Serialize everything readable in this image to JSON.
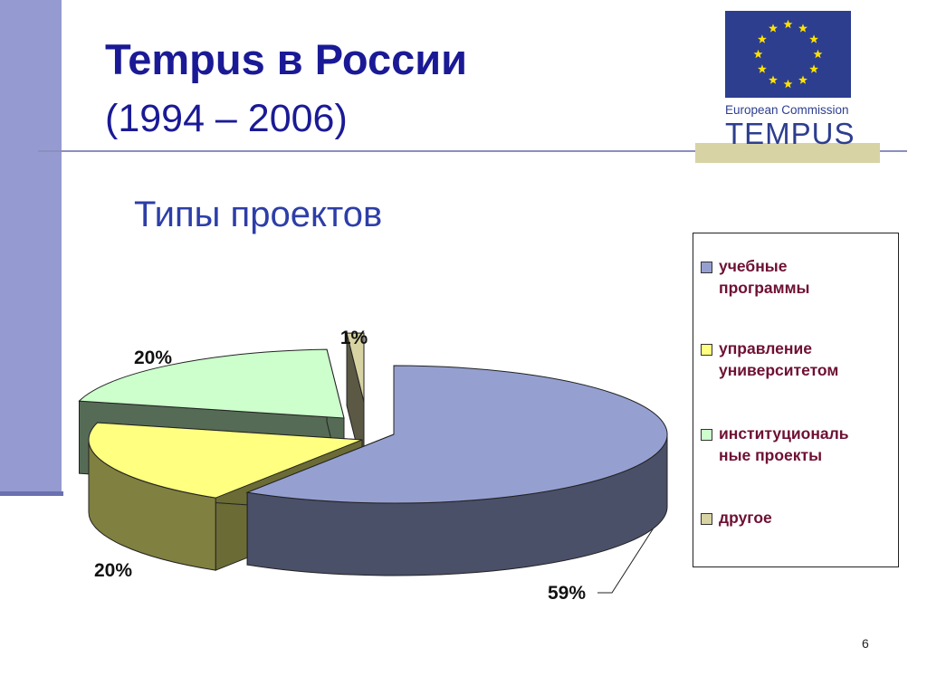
{
  "slide": {
    "title": "Tempus в России",
    "subtitle": "(1994 – 2006)",
    "heading": "Типы проектов",
    "page_number": "6"
  },
  "logo": {
    "org": "European Commission",
    "program": "TEMPUS",
    "flag_color": "#2d3e8f",
    "star_color": "#ffe200"
  },
  "chart_data": {
    "type": "pie",
    "style": "3d-exploded",
    "slices": [
      {
        "name": "учебные программы",
        "value": 59,
        "label": "59%",
        "color": "#95a0d1"
      },
      {
        "name": "управление университетом",
        "value": 20,
        "label": "20%",
        "color": "#ffff80"
      },
      {
        "name": "институциональные проекты",
        "value": 20,
        "label": "20%",
        "color": "#ccffcc"
      },
      {
        "name": "другое",
        "value": 1,
        "label": "1%",
        "color": "#d8d3a2"
      }
    ],
    "legend_position": "right"
  },
  "legend": {
    "items": [
      {
        "line1": "учебные",
        "line2": "программы",
        "color": "#95a0d1"
      },
      {
        "line1": "управление",
        "line2": "университетом",
        "color": "#ffff80"
      },
      {
        "line1": "институциональ",
        "line2": "ные проекты",
        "color": "#ccffcc"
      },
      {
        "line1": "другое",
        "line2": "",
        "color": "#d8d3a2"
      }
    ]
  }
}
